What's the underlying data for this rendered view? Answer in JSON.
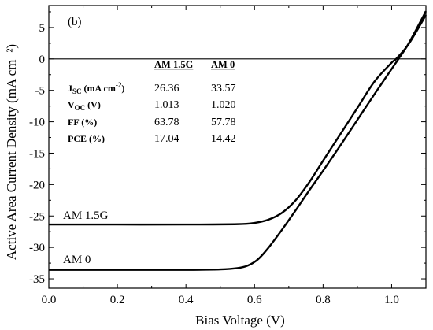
{
  "chart_data": {
    "type": "line",
    "panel_label": "(b)",
    "xlabel": "Bias Voltage (V)",
    "ylabel": "Active Area Current Density (mA cm⁻²)",
    "xlim": [
      0.0,
      1.1
    ],
    "ylim": [
      -36.5,
      8.5
    ],
    "x_ticks": [
      0.0,
      0.2,
      0.4,
      0.6,
      0.8,
      1.0
    ],
    "x_tick_labels": [
      "0.0",
      "0.2",
      "0.4",
      "0.6",
      "0.8",
      "1.0"
    ],
    "y_ticks": [
      5,
      0,
      -5,
      -10,
      -15,
      -20,
      -25,
      -30,
      -35
    ],
    "y_tick_labels": [
      "5",
      "0",
      "-5",
      "-10",
      "-15",
      "-20",
      "-25",
      "-30",
      "-35"
    ],
    "zero_line": true,
    "grid": false,
    "series": [
      {
        "name": "AM 1.5G",
        "x": [
          0.0,
          0.2,
          0.4,
          0.55,
          0.6,
          0.64,
          0.68,
          0.72,
          0.76,
          0.8,
          0.85,
          0.9,
          0.95,
          1.0,
          1.013,
          1.05,
          1.1
        ],
        "y": [
          -26.36,
          -26.36,
          -26.36,
          -26.3,
          -26.1,
          -25.6,
          -24.5,
          -22.5,
          -19.6,
          -16.2,
          -12.0,
          -7.8,
          -3.6,
          -0.6,
          0.0,
          2.4,
          7.0
        ]
      },
      {
        "name": "AM 0",
        "x": [
          0.0,
          0.2,
          0.4,
          0.5,
          0.55,
          0.58,
          0.61,
          0.64,
          0.68,
          0.72,
          0.76,
          0.8,
          0.85,
          0.9,
          0.95,
          1.0,
          1.02,
          1.05,
          1.1
        ],
        "y": [
          -33.57,
          -33.57,
          -33.57,
          -33.5,
          -33.3,
          -32.9,
          -31.9,
          -30.1,
          -27.2,
          -24.1,
          -20.9,
          -17.8,
          -13.8,
          -9.7,
          -5.6,
          -1.6,
          0.0,
          2.5,
          7.6
        ]
      }
    ],
    "table": {
      "headers": [
        "AM 1.5G",
        "AM 0"
      ],
      "rows": [
        {
          "param_main": "J",
          "param_sub": "SC",
          "param_rest": " (mA cm",
          "param_sup": "-2",
          "param_end": ")",
          "values": [
            "26.36",
            "33.57"
          ]
        },
        {
          "param_main": "V",
          "param_sub": "OC",
          "param_rest": " (V)",
          "param_sup": "",
          "param_end": "",
          "values": [
            "1.013",
            "1.020"
          ]
        },
        {
          "param_main": "FF (%)",
          "param_sub": "",
          "param_rest": "",
          "param_sup": "",
          "param_end": "",
          "values": [
            "63.78",
            "57.78"
          ]
        },
        {
          "param_main": "PCE (%)",
          "param_sub": "",
          "param_rest": "",
          "param_sup": "",
          "param_end": "",
          "values": [
            "17.04",
            "14.42"
          ]
        }
      ]
    }
  }
}
